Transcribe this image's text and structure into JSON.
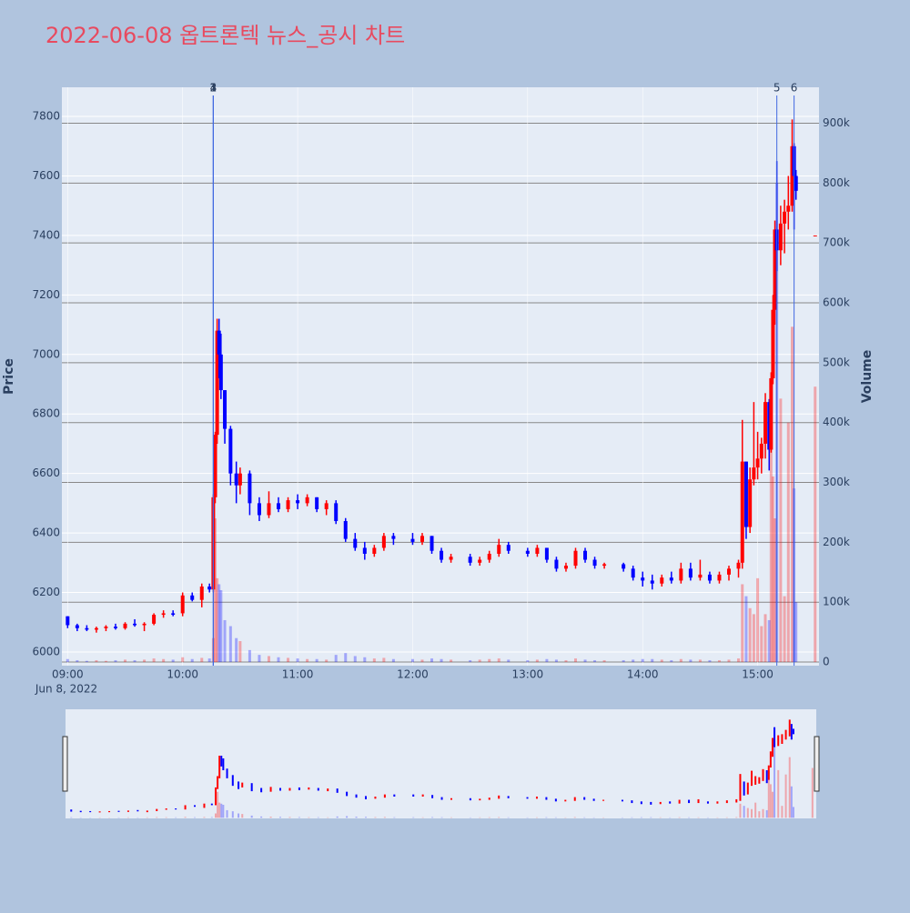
{
  "chart_data": {
    "type": "candlestick",
    "title": "2022-06-08 옵트론텍 뉴스_공시 차트",
    "y_label": "Price",
    "y2_label": "Volume",
    "x_date_label": "Jun 8, 2022",
    "xlim": [
      "08:57",
      "15:32"
    ],
    "xticks": [
      "09:00",
      "10:00",
      "11:00",
      "12:00",
      "13:00",
      "14:00",
      "15:00"
    ],
    "ylim": [
      5954,
      7898
    ],
    "yticks": [
      6000,
      6200,
      6400,
      6600,
      6800,
      7000,
      7200,
      7400,
      7600,
      7800
    ],
    "y2lim": [
      -6000,
      960000
    ],
    "y2ticks": [
      0,
      {
        "value": 100000,
        "label": "100k"
      },
      {
        "value": 200000,
        "label": "200k"
      },
      {
        "value": 300000,
        "label": "300k"
      },
      {
        "value": 400000,
        "label": "400k"
      },
      {
        "value": 500000,
        "label": "500k"
      },
      {
        "value": 600000,
        "label": "600k"
      },
      {
        "value": 700000,
        "label": "700k"
      },
      {
        "value": 800000,
        "label": "800k"
      },
      {
        "value": 900000,
        "label": "900k"
      }
    ],
    "increasing_color": "#ff0000",
    "decreasing_color": "#0000ff",
    "annotations": [
      {
        "x": "10:16",
        "label": "1"
      },
      {
        "x": "10:16",
        "label": "2"
      },
      {
        "x": "10:16",
        "label": "3"
      },
      {
        "x": "10:16",
        "label": "4"
      },
      {
        "x": "15:10",
        "label": "5"
      },
      {
        "x": "15:19",
        "label": "6"
      }
    ],
    "x": [
      "09:00",
      "09:05",
      "09:10",
      "09:15",
      "09:20",
      "09:25",
      "09:30",
      "09:35",
      "09:40",
      "09:45",
      "09:50",
      "09:55",
      "10:00",
      "10:05",
      "10:10",
      "10:14",
      "10:16",
      "10:17",
      "10:18",
      "10:19",
      "10:20",
      "10:22",
      "10:25",
      "10:28",
      "10:30",
      "10:35",
      "10:40",
      "10:45",
      "10:50",
      "10:55",
      "11:00",
      "11:05",
      "11:10",
      "11:15",
      "11:20",
      "11:25",
      "11:30",
      "11:35",
      "11:40",
      "11:45",
      "11:50",
      "12:00",
      "12:05",
      "12:10",
      "12:15",
      "12:20",
      "12:30",
      "12:35",
      "12:40",
      "12:45",
      "12:50",
      "13:00",
      "13:05",
      "13:10",
      "13:15",
      "13:20",
      "13:25",
      "13:30",
      "13:35",
      "13:40",
      "13:50",
      "13:55",
      "14:00",
      "14:05",
      "14:10",
      "14:15",
      "14:20",
      "14:25",
      "14:30",
      "14:35",
      "14:40",
      "14:45",
      "14:50",
      "14:52",
      "14:54",
      "14:56",
      "14:58",
      "15:00",
      "15:02",
      "15:04",
      "15:06",
      "15:07",
      "15:08",
      "15:09",
      "15:10",
      "15:12",
      "15:14",
      "15:16",
      "15:18",
      "15:19",
      "15:20",
      "15:30"
    ],
    "open": [
      6120,
      6090,
      6080,
      6075,
      6080,
      6085,
      6080,
      6095,
      6090,
      6095,
      6125,
      6130,
      6130,
      6190,
      6175,
      6220,
      6210,
      6520,
      6730,
      7080,
      7000,
      6880,
      6750,
      6600,
      6560,
      6600,
      6500,
      6460,
      6500,
      6480,
      6510,
      6500,
      6520,
      6480,
      6500,
      6440,
      6380,
      6350,
      6330,
      6350,
      6390,
      6380,
      6370,
      6390,
      6340,
      6310,
      6320,
      6300,
      6310,
      6330,
      6360,
      6340,
      6330,
      6350,
      6310,
      6280,
      6290,
      6340,
      6310,
      6290,
      6295,
      6280,
      6250,
      6240,
      6230,
      6250,
      6240,
      6280,
      6250,
      6260,
      6240,
      6260,
      6280,
      6300,
      6640,
      6420,
      6580,
      6620,
      6650,
      6700,
      6840,
      6680,
      6920,
      7150,
      7420,
      7350,
      7440,
      7480,
      7500,
      7700,
      7600,
      7400
    ],
    "high": [
      6120,
      6095,
      6090,
      6085,
      6090,
      6095,
      6100,
      6110,
      6100,
      6130,
      6140,
      6140,
      6200,
      6200,
      6230,
      6230,
      6530,
      6740,
      7120,
      7120,
      7070,
      6880,
      6760,
      6640,
      6620,
      6610,
      6520,
      6540,
      6520,
      6520,
      6530,
      6530,
      6520,
      6510,
      6510,
      6450,
      6400,
      6370,
      6360,
      6400,
      6400,
      6400,
      6400,
      6390,
      6350,
      6330,
      6330,
      6320,
      6340,
      6380,
      6370,
      6350,
      6360,
      6350,
      6320,
      6300,
      6350,
      6350,
      6320,
      6300,
      6300,
      6290,
      6270,
      6260,
      6260,
      6270,
      6300,
      6300,
      6310,
      6270,
      6270,
      6290,
      6310,
      6780,
      6640,
      6620,
      6840,
      6740,
      6720,
      6870,
      6850,
      6940,
      7200,
      7450,
      7650,
      7500,
      7520,
      7600,
      7790,
      7710,
      7620,
      7400
    ],
    "low": [
      6080,
      6070,
      6070,
      6065,
      6070,
      6075,
      6075,
      6085,
      6070,
      6090,
      6115,
      6120,
      6120,
      6170,
      6150,
      6200,
      6200,
      6500,
      6700,
      6920,
      6850,
      6700,
      6560,
      6500,
      6530,
      6460,
      6440,
      6450,
      6470,
      6470,
      6480,
      6490,
      6470,
      6460,
      6430,
      6370,
      6340,
      6310,
      6320,
      6340,
      6360,
      6360,
      6360,
      6330,
      6300,
      6300,
      6290,
      6290,
      6300,
      6320,
      6330,
      6320,
      6320,
      6300,
      6270,
      6270,
      6280,
      6300,
      6280,
      6280,
      6270,
      6240,
      6220,
      6210,
      6220,
      6230,
      6230,
      6240,
      6240,
      6230,
      6230,
      6240,
      6250,
      6280,
      6380,
      6400,
      6560,
      6580,
      6600,
      6650,
      6610,
      6670,
      6900,
      7100,
      7280,
      7300,
      7340,
      7420,
      7480,
      7420,
      7520,
      7400
    ],
    "close": [
      6090,
      6080,
      6075,
      6080,
      6085,
      6080,
      6095,
      6090,
      6095,
      6125,
      6130,
      6125,
      6190,
      6175,
      6220,
      6210,
      6520,
      6730,
      7080,
      7000,
      6880,
      6750,
      6600,
      6560,
      6600,
      6500,
      6460,
      6500,
      6480,
      6510,
      6500,
      6520,
      6480,
      6500,
      6440,
      6380,
      6350,
      6330,
      6350,
      6390,
      6380,
      6370,
      6390,
      6340,
      6310,
      6320,
      6300,
      6310,
      6330,
      6360,
      6340,
      6330,
      6350,
      6310,
      6280,
      6290,
      6340,
      6310,
      6290,
      6295,
      6280,
      6250,
      6240,
      6230,
      6250,
      6240,
      6280,
      6250,
      6260,
      6240,
      6260,
      6280,
      6300,
      6640,
      6420,
      6580,
      6620,
      6650,
      6700,
      6840,
      6680,
      6920,
      7150,
      7420,
      7350,
      7440,
      7480,
      7500,
      7700,
      7600,
      7550,
      7400
    ],
    "volume": [
      5000,
      3000,
      2000,
      3000,
      2000,
      3000,
      4000,
      3000,
      4000,
      6000,
      5000,
      4000,
      8000,
      5000,
      7000,
      6000,
      40000,
      240000,
      140000,
      130000,
      120000,
      70000,
      60000,
      40000,
      35000,
      20000,
      12000,
      10000,
      8000,
      7000,
      6000,
      5000,
      5000,
      4000,
      12000,
      15000,
      10000,
      8000,
      6000,
      7000,
      5000,
      5000,
      4000,
      6000,
      5000,
      4000,
      3000,
      4000,
      5000,
      6000,
      4000,
      3000,
      4000,
      5000,
      4000,
      3000,
      6000,
      4000,
      3000,
      3000,
      3000,
      4000,
      5000,
      5000,
      4000,
      3000,
      5000,
      4000,
      4000,
      3000,
      3000,
      4000,
      6000,
      130000,
      110000,
      90000,
      80000,
      140000,
      60000,
      80000,
      70000,
      430000,
      310000,
      240000,
      800000,
      440000,
      110000,
      400000,
      560000,
      290000,
      100000,
      460000
    ]
  }
}
